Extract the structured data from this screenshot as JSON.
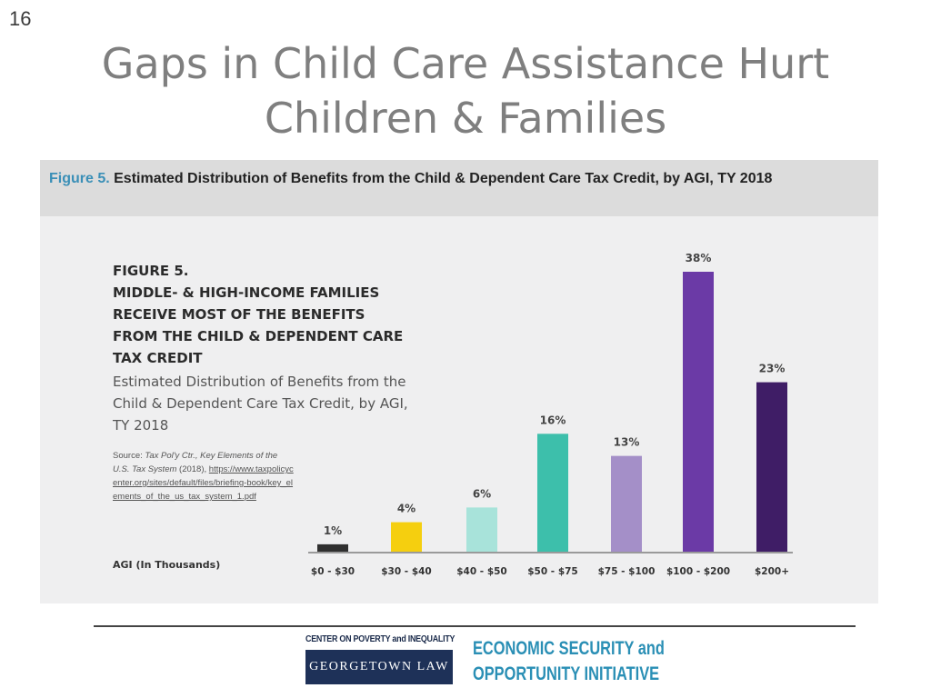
{
  "slide": {
    "number": "16",
    "title": "Gaps in Child Care Assistance Hurt Children & Families"
  },
  "figure_header": {
    "label": "Figure 5.",
    "text": " Estimated Distribution of Benefits from the Child & Dependent Care Tax Credit, by AGI, TY 2018"
  },
  "panel": {
    "heading_lines": [
      "FIGURE 5.",
      "MIDDLE- & HIGH-INCOME FAMILIES",
      "RECEIVE MOST OF THE BENEFITS",
      "FROM THE CHILD & DEPENDENT CARE",
      "TAX CREDIT"
    ],
    "subtitle": "Estimated Distribution of Benefits from the Child & Dependent Care Tax Credit, by AGI, TY 2018",
    "source_prefix": "Source: ",
    "source_italic": "Tax Pol'y Ctr., Key Elements of the U.S. Tax System",
    "source_mid": " (2018), ",
    "source_link": "https://www.taxpolicycenter.org/sites/default/files/briefing-book/key_elements_of_the_us_tax_system_1.pdf",
    "agi_label": "AGI (In Thousands)"
  },
  "chart_data": {
    "type": "bar",
    "categories": [
      "$0 - $30",
      "$30 - $40",
      "$40 - $50",
      "$50 - $75",
      "$75 - $100",
      "$100 - $200",
      "$200+"
    ],
    "values": [
      1,
      4,
      6,
      16,
      13,
      38,
      23
    ],
    "data_labels": [
      "1%",
      "4%",
      "6%",
      "16%",
      "13%",
      "38%",
      "23%"
    ],
    "colors": [
      "#2f2f2f",
      "#f5cf0f",
      "#a8e3da",
      "#3dbfab",
      "#a48fc8",
      "#6b3aa6",
      "#3f1d66"
    ],
    "ylim": [
      0,
      40
    ],
    "xlabel": "AGI (In Thousands)",
    "ylabel": "",
    "grid": false,
    "legend": "none"
  },
  "footer": {
    "left_org": "CENTER ON POVERTY and INEQUALITY",
    "left_box": "GEORGETOWN LAW",
    "right_line1": "ECONOMIC SECURITY and",
    "right_line2": "OPPORTUNITY INITIATIVE",
    "accent_color": "#2a8fb5",
    "box_color": "#1e3158"
  }
}
